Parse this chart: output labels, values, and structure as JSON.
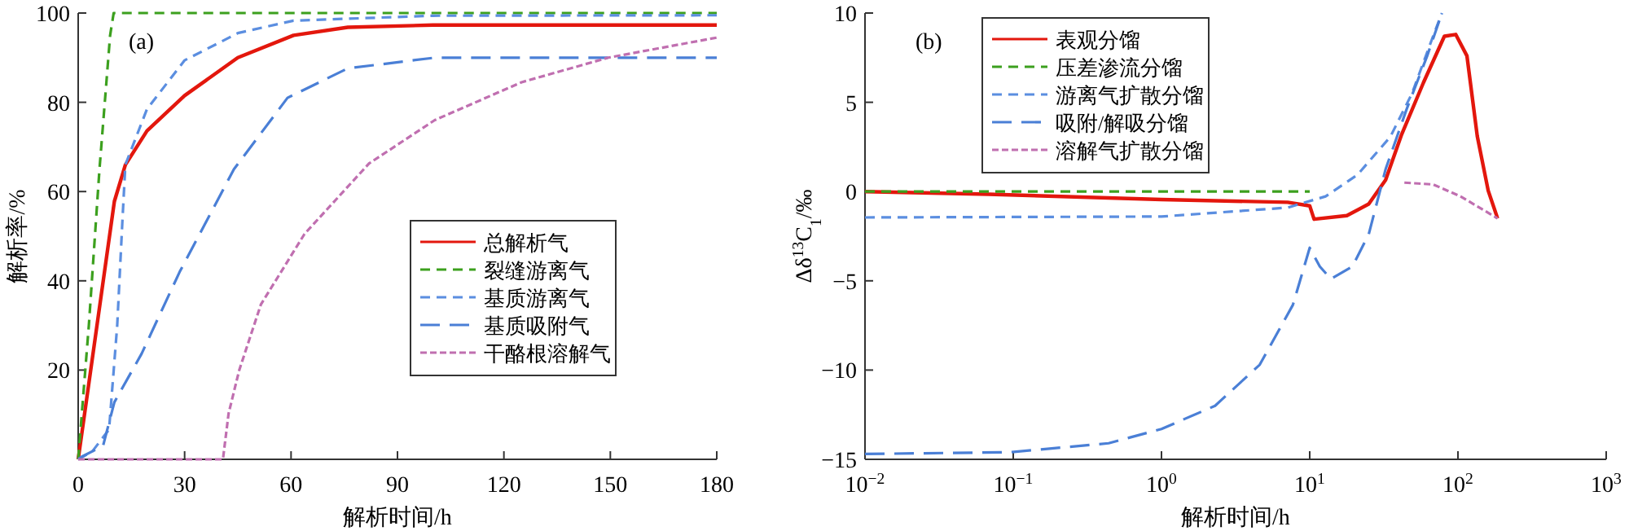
{
  "chart_data": [
    {
      "type": "line",
      "annotations": [
        "(a)"
      ],
      "xlabel": "解析时间/h",
      "ylabel": "解析率/%",
      "xlim": [
        0,
        180
      ],
      "xticks": [
        0,
        30,
        60,
        90,
        120,
        150,
        180
      ],
      "ylim": [
        0,
        100
      ],
      "yticks": [
        20,
        40,
        60,
        80,
        100
      ],
      "legend": "right",
      "grid": false,
      "series": [
        {
          "name": "总解析气",
          "color": "#e3170d",
          "line_style": "solid",
          "x": [
            0,
            10.2,
            13.3,
            19.4,
            30,
            45,
            60.7,
            76,
            100,
            180
          ],
          "values": [
            0,
            57.8,
            66,
            73.6,
            81.5,
            90,
            95,
            96.8,
            97.3,
            97.3
          ]
        },
        {
          "name": "裂缝游离气",
          "color": "#3ca01e",
          "line_style": "dashed",
          "x": [
            0,
            3,
            6,
            9,
            10,
            180
          ],
          "values": [
            0,
            30,
            65,
            95,
            100,
            100
          ]
        },
        {
          "name": "基质游离气",
          "color": "#5b8ee0",
          "line_style": "dashed",
          "x": [
            0,
            4,
            8.7,
            11,
            12.5,
            13.3,
            19.4,
            30,
            45,
            60.7,
            100,
            180
          ],
          "values": [
            0,
            1.8,
            6.7,
            30,
            54,
            66,
            78.5,
            89.4,
            95.5,
            98.3,
            99.4,
            99.5
          ]
        },
        {
          "name": "基质吸附气",
          "color": "#4a7fd6",
          "line_style": "longdash",
          "x": [
            0,
            1,
            7,
            10.2,
            17.9,
            28.6,
            43.9,
            59,
            76,
            100.5,
            180
          ],
          "values": [
            0,
            0.6,
            3,
            12.8,
            23.7,
            42,
            65,
            81,
            87.6,
            90,
            90
          ]
        },
        {
          "name": "干酪根溶解气",
          "color": "#c06fb0",
          "line_style": "dotted",
          "x": [
            0,
            40.8,
            42.4,
            45.4,
            51.5,
            63.8,
            82,
            100.5,
            125,
            149.4,
            180
          ],
          "values": [
            0,
            0,
            10.3,
            20,
            34.7,
            50.5,
            66.3,
            76,
            84.5,
            90,
            94.5
          ]
        }
      ]
    },
    {
      "type": "line",
      "annotations": [
        "(b)"
      ],
      "xlabel": "解析时间/h",
      "ylabel": "Δδ$^{13}$C$_{1}$/‰",
      "log": "x",
      "xlim": [
        0.01,
        1000
      ],
      "xticks": [
        {
          "value": 0.01,
          "label": "10$^{−2}$"
        },
        {
          "value": 0.1,
          "label": "10$^{−1}$"
        },
        {
          "value": 1,
          "label": "10$^{0}$"
        },
        {
          "value": 10,
          "label": "10$^{1}$"
        },
        {
          "value": 100,
          "label": "10$^{2}$"
        },
        {
          "value": 1000,
          "label": "10$^{3}$"
        }
      ],
      "ylim": [
        -15,
        10
      ],
      "yticks": [
        {
          "value": -15,
          "label": "−15"
        },
        {
          "value": -10,
          "label": "−10"
        },
        {
          "value": -5,
          "label": "−5"
        },
        0,
        5,
        10
      ],
      "legend": "top left",
      "grid": false,
      "series": [
        {
          "name": "表观分馏",
          "color": "#e3170d",
          "line_style": "solid",
          "x": [
            0.01,
            0.068,
            1,
            7.1,
            10,
            10.7,
            17.8,
            25,
            32.5,
            41.7,
            58.5,
            81,
            96.6,
            115,
            135,
            160,
            185
          ],
          "values": [
            0,
            -0.15,
            -0.45,
            -0.6,
            -0.8,
            -1.55,
            -1.35,
            -0.7,
            0.65,
            3.2,
            6.1,
            8.7,
            8.8,
            7.6,
            3.1,
            0.05,
            -1.5
          ]
        },
        {
          "name": "压差渗流分馏",
          "color": "#3ca01e",
          "line_style": "dashed",
          "x": [
            0.01,
            10
          ],
          "values": [
            0,
            0
          ]
        },
        {
          "name": "游离气扩散分馏",
          "color": "#5b8ee0",
          "line_style": "dashed",
          "x": [
            0.01,
            1,
            7.1,
            12.8,
            21,
            35,
            49,
            69,
            78
          ],
          "values": [
            -1.45,
            -1.4,
            -0.9,
            -0.27,
            0.94,
            3.07,
            5.5,
            8.85,
            10
          ]
        },
        {
          "name": "吸附/解吸分馏",
          "color": "#4a7fd6",
          "line_style": "longdash",
          "x": [
            0.01,
            0.095,
            0.44,
            1,
            2.3,
            4.6,
            7.7,
            10,
            11.7,
            13.9,
            19.4,
            25,
            32.5,
            45,
            62,
            78
          ],
          "values": [
            -14.7,
            -14.6,
            -14.1,
            -13.3,
            -12,
            -9.7,
            -6.35,
            -3.15,
            -4.2,
            -4.9,
            -4.2,
            -2.4,
            1.25,
            4.6,
            7.6,
            10
          ]
        },
        {
          "name": "溶解气扩散分馏",
          "color": "#c06fb0",
          "line_style": "dotted",
          "x": [
            43.5,
            68,
            104,
            185
          ],
          "values": [
            0.5,
            0.4,
            -0.27,
            -1.5
          ]
        }
      ]
    }
  ]
}
